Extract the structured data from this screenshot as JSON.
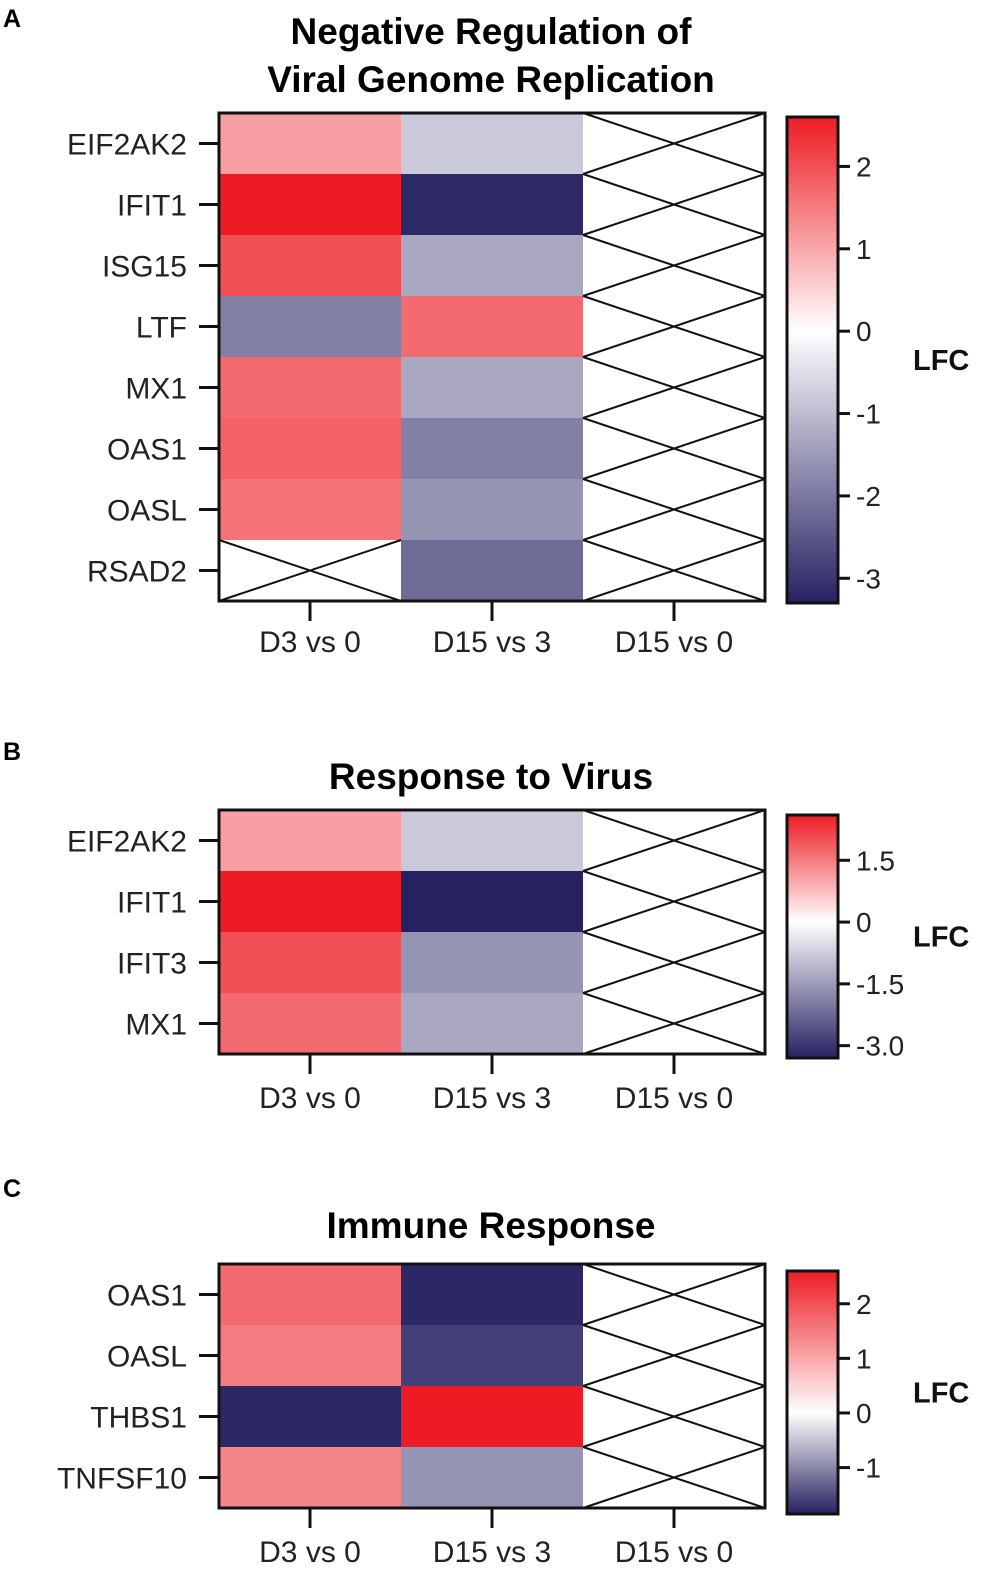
{
  "chart_data": [
    {
      "panel": "A",
      "type": "heatmap",
      "title": [
        "Negative Regulation of",
        "Viral Genome Replication"
      ],
      "columns": [
        "D3 vs 0",
        "D15 vs 3",
        "D15 vs 0"
      ],
      "rows": [
        "EIF2AK2",
        "IFIT1",
        "ISG15",
        "LTF",
        "MX1",
        "OAS1",
        "OASL",
        "RSAD2"
      ],
      "values": [
        [
          1.1,
          -0.8,
          null
        ],
        [
          2.6,
          -3.2,
          null
        ],
        [
          2.0,
          -1.3,
          null
        ],
        [
          -1.9,
          1.7,
          null
        ],
        [
          1.7,
          -1.3,
          null
        ],
        [
          1.8,
          -1.9,
          null
        ],
        [
          1.6,
          -1.6,
          null
        ],
        [
          null,
          -2.2,
          null
        ]
      ],
      "colorbar": {
        "label": "LFC",
        "range": [
          -3.3,
          2.6
        ],
        "ticks": [
          2,
          1,
          0,
          -1,
          -2,
          -3
        ],
        "tick_labels": [
          "2",
          "1",
          "0",
          "-1",
          "-2",
          "-3"
        ]
      }
    },
    {
      "panel": "B",
      "type": "heatmap",
      "title": [
        "Response to Virus"
      ],
      "columns": [
        "D3 vs 0",
        "D15 vs 3",
        "D15 vs 0"
      ],
      "rows": [
        "EIF2AK2",
        "IFIT1",
        "IFIT3",
        "MX1"
      ],
      "values": [
        [
          1.1,
          -0.8,
          null
        ],
        [
          2.6,
          -3.3,
          null
        ],
        [
          2.0,
          -1.6,
          null
        ],
        [
          1.7,
          -1.3,
          null
        ]
      ],
      "colorbar": {
        "label": "LFC",
        "range": [
          -3.3,
          2.6
        ],
        "ticks": [
          1.5,
          0,
          -1.5,
          -3.0
        ],
        "tick_labels": [
          "1.5",
          "0",
          "-1.5",
          "-3.0"
        ]
      }
    },
    {
      "panel": "C",
      "type": "heatmap",
      "title": [
        "Immune Response"
      ],
      "columns": [
        "D3 vs 0",
        "D15 vs 3",
        "D15 vs 0"
      ],
      "rows": [
        "OAS1",
        "OASL",
        "THBS1",
        "TNFSF10"
      ],
      "values": [
        [
          1.7,
          -1.8,
          null
        ],
        [
          1.5,
          -1.6,
          null
        ],
        [
          -1.8,
          2.6,
          null
        ],
        [
          1.4,
          -0.9,
          null
        ]
      ],
      "colorbar": {
        "label": "LFC",
        "range": [
          -1.85,
          2.6
        ],
        "ticks": [
          2,
          1,
          0,
          -1
        ],
        "tick_labels": [
          "2",
          "1",
          "0",
          "-1"
        ]
      }
    }
  ],
  "colors": {
    "high": "#ed1c24",
    "mid": "#ffffff",
    "low": "#262262",
    "outline": "#111111"
  }
}
